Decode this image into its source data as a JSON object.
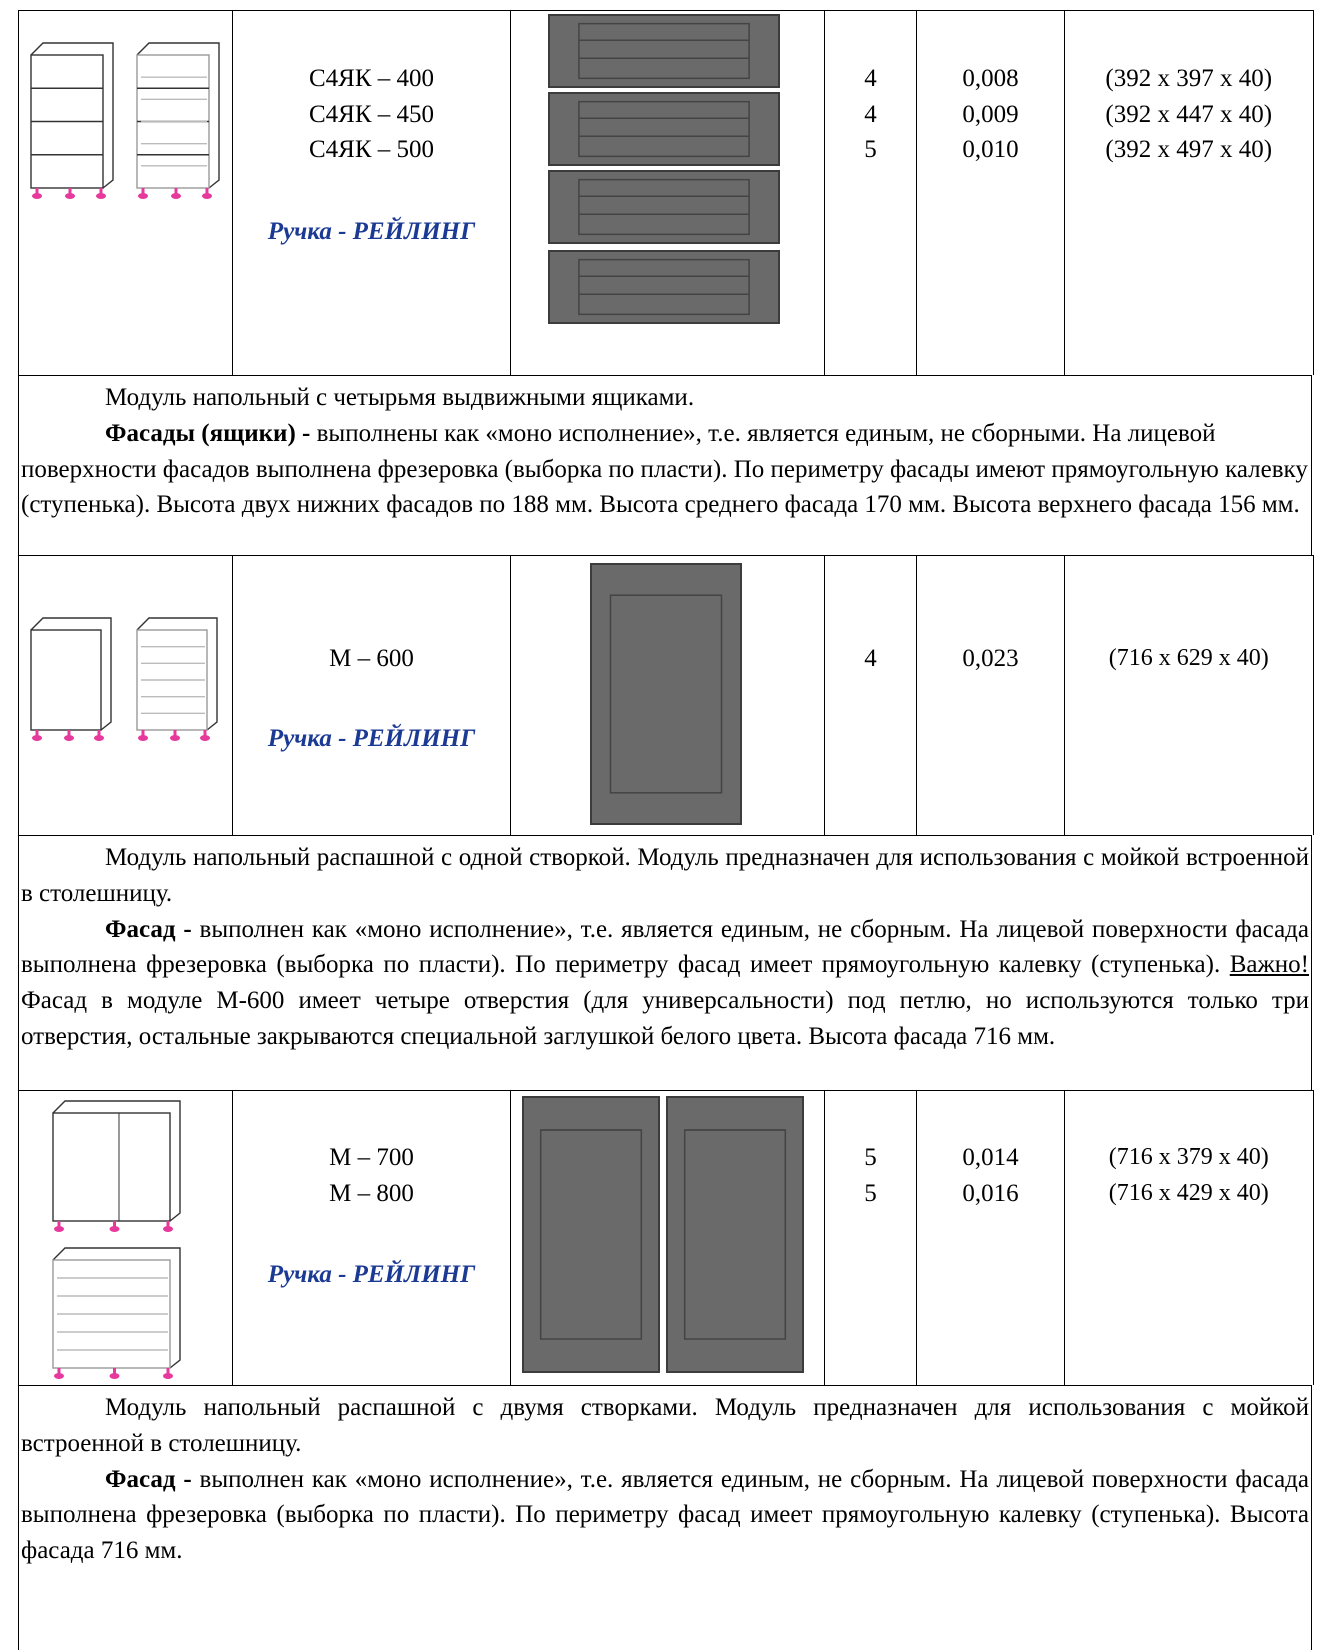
{
  "rows": [
    {
      "models": [
        "С4ЯК – 400",
        "С4ЯК – 450",
        "С4ЯК – 500"
      ],
      "handle": "Ручка - РЕЙЛИНГ",
      "counts": [
        "4",
        "4",
        "5"
      ],
      "volumes": [
        "0,008",
        "0,009",
        "0,010"
      ],
      "dims": [
        "(392 x 397 x 40)",
        "(392 x 447 x 40)",
        "(392 x 497 x 40)"
      ],
      "description": [
        [
          {
            "text": "Модуль напольный с четырьмя выдвижными ящиками."
          }
        ],
        [
          {
            "text": "Фасады (ящики) -",
            "bold": true
          },
          {
            "text": " выполнены как «моно исполнение», т.е. является единым, не сборными. На лицевой поверхности фасадов выполнена фрезеровка (выборка по пласти). По периметру фасады имеют прямоугольную калевку (ступенька). Высота двух нижних фасадов по 188 мм. Высота среднего фасада 170 мм. Высота верхнего фасада 156 мм."
          }
        ]
      ]
    },
    {
      "models": [
        "М – 600"
      ],
      "handle": "Ручка - РЕЙЛИНГ",
      "counts": [
        "4"
      ],
      "volumes": [
        "0,023"
      ],
      "dims": [
        "(716 x 629 x 40)"
      ],
      "description": [
        [
          {
            "text": "Модуль напольный распашной с одной створкой. Модуль предназначен для использования с мойкой встроенной в столешницу."
          }
        ],
        [
          {
            "text": "Фасад -",
            "bold": true
          },
          {
            "text": " выполнен как «моно исполнение», т.е. является единым, не сборным. На лицевой поверхности фасада выполнена фрезеровка (выборка по пласти). По периметру фасад имеет прямоугольную калевку (ступенька).  "
          },
          {
            "text": "Важно! ",
            "underline": true
          },
          {
            "text": "Фасад в модуле М-600 имеет четыре отверстия (для универсальности) под петлю, но используются только три отверстия, остальные закрываются специальной заглушкой белого цвета. Высота фасада 716 мм."
          }
        ]
      ]
    },
    {
      "models": [
        "М – 700",
        "М – 800"
      ],
      "handle": "Ручка - РЕЙЛИНГ",
      "counts": [
        "5",
        "5"
      ],
      "volumes": [
        "0,014",
        "0,016"
      ],
      "dims": [
        "(716 x 379 x 40)",
        "(716 x 429 x 40)"
      ],
      "description": [
        [
          {
            "text": "Модуль напольный распашной с двумя створками. Модуль предназначен для использования с мойкой встроенной в столешницу."
          }
        ],
        [
          {
            "text": "Фасад -",
            "bold": true
          },
          {
            "text": " выполнен как «моно исполнение», т.е. является единым, не сборным. На лицевой поверхности фасада выполнена фрезеровка (выборка по пласти). По периметру фасад имеет прямоугольную калевку (ступенька).  Высота фасада 716 мм."
          }
        ]
      ]
    }
  ]
}
